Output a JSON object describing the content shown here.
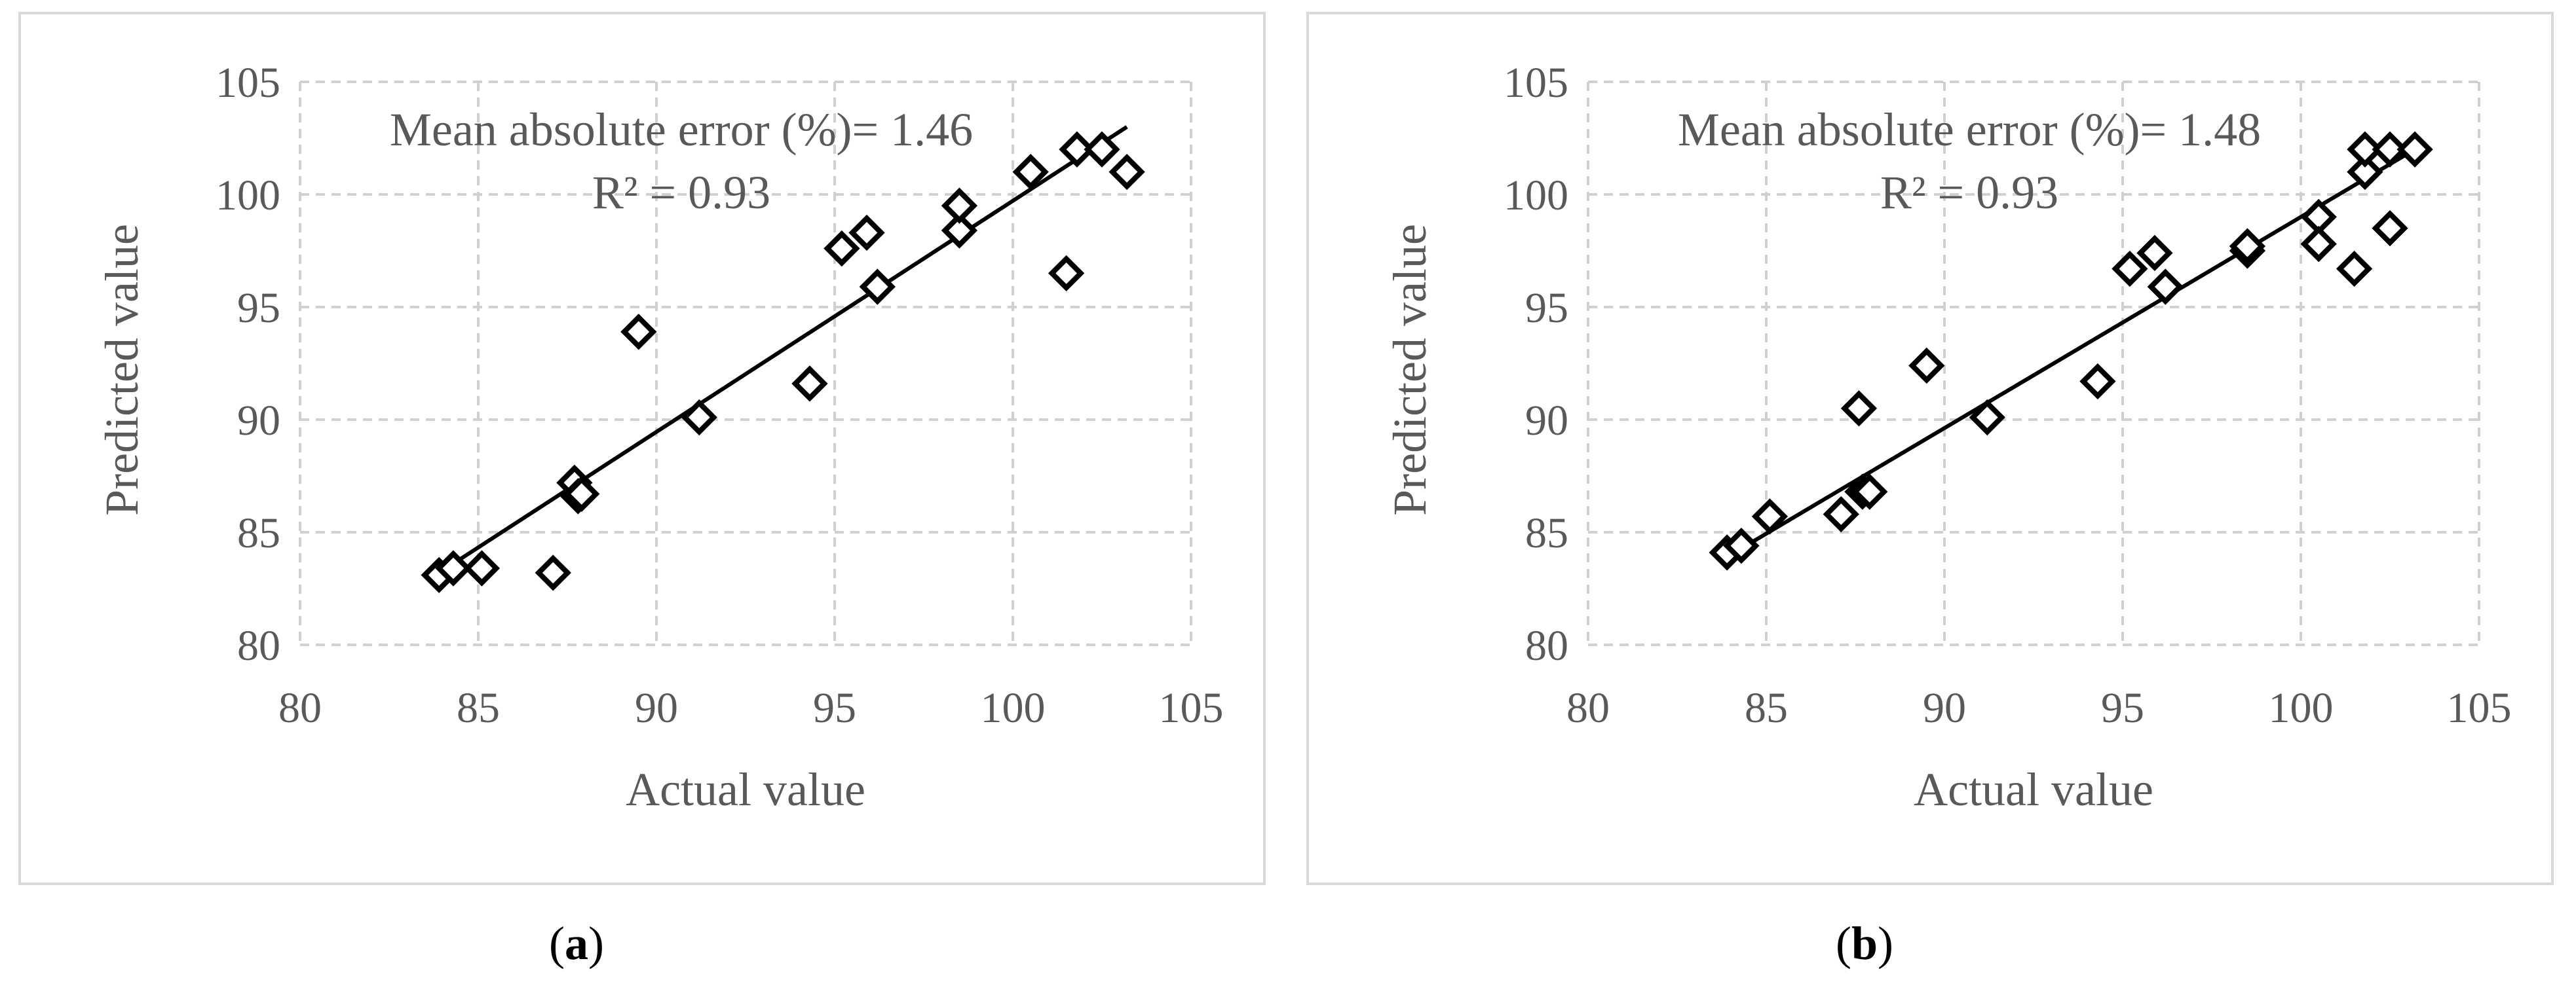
{
  "chart_data": [
    {
      "type": "scatter",
      "panel_label": "a",
      "xlabel": "Actual value",
      "ylabel": "Predicted value",
      "xlim": [
        80,
        105
      ],
      "ylim": [
        80,
        105
      ],
      "xticks": [
        "80",
        "85",
        "90",
        "95",
        "100",
        "105"
      ],
      "yticks": [
        "80",
        "85",
        "90",
        "95",
        "100",
        "105"
      ],
      "grid": true,
      "annotation_lines": [
        "Mean absolute error (%)= 1.46",
        "R² = 0.93"
      ],
      "points": [
        {
          "x": 83.9,
          "y": 83.1
        },
        {
          "x": 84.3,
          "y": 83.4
        },
        {
          "x": 85.1,
          "y": 83.4
        },
        {
          "x": 87.1,
          "y": 83.2
        },
        {
          "x": 87.7,
          "y": 87.2
        },
        {
          "x": 87.8,
          "y": 86.6
        },
        {
          "x": 87.9,
          "y": 86.7
        },
        {
          "x": 89.5,
          "y": 93.9
        },
        {
          "x": 91.2,
          "y": 90.1
        },
        {
          "x": 94.3,
          "y": 91.6
        },
        {
          "x": 95.2,
          "y": 97.6
        },
        {
          "x": 95.9,
          "y": 98.3
        },
        {
          "x": 96.2,
          "y": 95.9
        },
        {
          "x": 98.5,
          "y": 98.4
        },
        {
          "x": 98.5,
          "y": 99.5
        },
        {
          "x": 100.5,
          "y": 101.0
        },
        {
          "x": 101.5,
          "y": 96.5
        },
        {
          "x": 101.8,
          "y": 102.0
        },
        {
          "x": 102.5,
          "y": 102.0
        },
        {
          "x": 103.2,
          "y": 101.0
        }
      ],
      "trendline": {
        "x1": 84.0,
        "y1": 83.3,
        "x2": 103.2,
        "y2": 103.0
      }
    },
    {
      "type": "scatter",
      "panel_label": "b",
      "xlabel": "Actual value",
      "ylabel": "Predicted value",
      "xlim": [
        80,
        105
      ],
      "ylim": [
        80,
        105
      ],
      "xticks": [
        "80",
        "85",
        "90",
        "95",
        "100",
        "105"
      ],
      "yticks": [
        "80",
        "85",
        "90",
        "95",
        "100",
        "105"
      ],
      "grid": true,
      "annotation_lines": [
        "Mean absolute error (%)= 1.48",
        "R² = 0.93"
      ],
      "points": [
        {
          "x": 83.9,
          "y": 84.1
        },
        {
          "x": 84.3,
          "y": 84.4
        },
        {
          "x": 85.1,
          "y": 85.7
        },
        {
          "x": 87.1,
          "y": 85.8
        },
        {
          "x": 87.6,
          "y": 90.5
        },
        {
          "x": 87.7,
          "y": 86.8
        },
        {
          "x": 87.9,
          "y": 86.8
        },
        {
          "x": 89.5,
          "y": 92.4
        },
        {
          "x": 91.2,
          "y": 90.1
        },
        {
          "x": 94.3,
          "y": 91.7
        },
        {
          "x": 95.2,
          "y": 96.7
        },
        {
          "x": 95.9,
          "y": 97.4
        },
        {
          "x": 96.2,
          "y": 95.9
        },
        {
          "x": 98.5,
          "y": 97.5
        },
        {
          "x": 98.5,
          "y": 97.7
        },
        {
          "x": 100.5,
          "y": 99.0
        },
        {
          "x": 100.5,
          "y": 97.8
        },
        {
          "x": 101.5,
          "y": 96.7
        },
        {
          "x": 101.8,
          "y": 101.0
        },
        {
          "x": 101.8,
          "y": 102.0
        },
        {
          "x": 102.5,
          "y": 98.5
        },
        {
          "x": 102.5,
          "y": 102.0
        },
        {
          "x": 103.2,
          "y": 102.0
        }
      ],
      "trendline": {
        "x1": 84.0,
        "y1": 84.0,
        "x2": 103.2,
        "y2": 102.0
      }
    }
  ],
  "captions": [
    "(a)",
    "(b)"
  ]
}
